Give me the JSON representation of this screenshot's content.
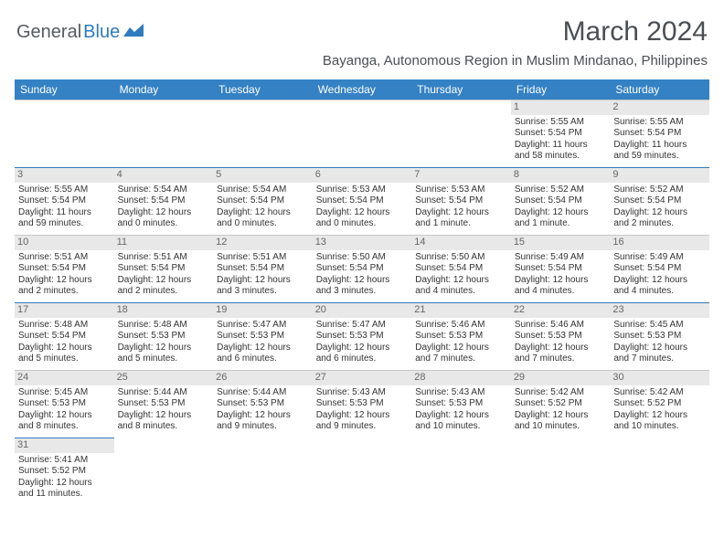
{
  "brand": {
    "part1": "General",
    "part2": "Blue"
  },
  "title": "March 2024",
  "location": "Bayanga, Autonomous Region in Muslim Mindanao, Philippines",
  "colors": {
    "header_bg": "#3481c4",
    "header_text": "#ffffff",
    "daynum_bg": "#e8e8e8",
    "daynum_text": "#666666",
    "body_text": "#333333",
    "row_divider_blue": "#2f7bbf",
    "row_divider_gray": "#c8c8c8",
    "brand_gray": "#555a5f",
    "brand_blue": "#2f7bbf",
    "title_color": "#4a4f54",
    "background": "#ffffff"
  },
  "typography": {
    "month_title_fontsize": 30,
    "location_fontsize": 15,
    "weekday_header_fontsize": 12,
    "daynum_fontsize": 11,
    "cell_fontsize": 10,
    "logo_fontsize": 20
  },
  "weekdays": [
    "Sunday",
    "Monday",
    "Tuesday",
    "Wednesday",
    "Thursday",
    "Friday",
    "Saturday"
  ],
  "weeks": [
    [
      null,
      null,
      null,
      null,
      null,
      {
        "n": "1",
        "sr": "Sunrise: 5:55 AM",
        "ss": "Sunset: 5:54 PM",
        "d1": "Daylight: 11 hours",
        "d2": "and 58 minutes."
      },
      {
        "n": "2",
        "sr": "Sunrise: 5:55 AM",
        "ss": "Sunset: 5:54 PM",
        "d1": "Daylight: 11 hours",
        "d2": "and 59 minutes."
      }
    ],
    [
      {
        "n": "3",
        "sr": "Sunrise: 5:55 AM",
        "ss": "Sunset: 5:54 PM",
        "d1": "Daylight: 11 hours",
        "d2": "and 59 minutes."
      },
      {
        "n": "4",
        "sr": "Sunrise: 5:54 AM",
        "ss": "Sunset: 5:54 PM",
        "d1": "Daylight: 12 hours",
        "d2": "and 0 minutes."
      },
      {
        "n": "5",
        "sr": "Sunrise: 5:54 AM",
        "ss": "Sunset: 5:54 PM",
        "d1": "Daylight: 12 hours",
        "d2": "and 0 minutes."
      },
      {
        "n": "6",
        "sr": "Sunrise: 5:53 AM",
        "ss": "Sunset: 5:54 PM",
        "d1": "Daylight: 12 hours",
        "d2": "and 0 minutes."
      },
      {
        "n": "7",
        "sr": "Sunrise: 5:53 AM",
        "ss": "Sunset: 5:54 PM",
        "d1": "Daylight: 12 hours",
        "d2": "and 1 minute."
      },
      {
        "n": "8",
        "sr": "Sunrise: 5:52 AM",
        "ss": "Sunset: 5:54 PM",
        "d1": "Daylight: 12 hours",
        "d2": "and 1 minute."
      },
      {
        "n": "9",
        "sr": "Sunrise: 5:52 AM",
        "ss": "Sunset: 5:54 PM",
        "d1": "Daylight: 12 hours",
        "d2": "and 2 minutes."
      }
    ],
    [
      {
        "n": "10",
        "sr": "Sunrise: 5:51 AM",
        "ss": "Sunset: 5:54 PM",
        "d1": "Daylight: 12 hours",
        "d2": "and 2 minutes."
      },
      {
        "n": "11",
        "sr": "Sunrise: 5:51 AM",
        "ss": "Sunset: 5:54 PM",
        "d1": "Daylight: 12 hours",
        "d2": "and 2 minutes."
      },
      {
        "n": "12",
        "sr": "Sunrise: 5:51 AM",
        "ss": "Sunset: 5:54 PM",
        "d1": "Daylight: 12 hours",
        "d2": "and 3 minutes."
      },
      {
        "n": "13",
        "sr": "Sunrise: 5:50 AM",
        "ss": "Sunset: 5:54 PM",
        "d1": "Daylight: 12 hours",
        "d2": "and 3 minutes."
      },
      {
        "n": "14",
        "sr": "Sunrise: 5:50 AM",
        "ss": "Sunset: 5:54 PM",
        "d1": "Daylight: 12 hours",
        "d2": "and 4 minutes."
      },
      {
        "n": "15",
        "sr": "Sunrise: 5:49 AM",
        "ss": "Sunset: 5:54 PM",
        "d1": "Daylight: 12 hours",
        "d2": "and 4 minutes."
      },
      {
        "n": "16",
        "sr": "Sunrise: 5:49 AM",
        "ss": "Sunset: 5:54 PM",
        "d1": "Daylight: 12 hours",
        "d2": "and 4 minutes."
      }
    ],
    [
      {
        "n": "17",
        "sr": "Sunrise: 5:48 AM",
        "ss": "Sunset: 5:54 PM",
        "d1": "Daylight: 12 hours",
        "d2": "and 5 minutes."
      },
      {
        "n": "18",
        "sr": "Sunrise: 5:48 AM",
        "ss": "Sunset: 5:53 PM",
        "d1": "Daylight: 12 hours",
        "d2": "and 5 minutes."
      },
      {
        "n": "19",
        "sr": "Sunrise: 5:47 AM",
        "ss": "Sunset: 5:53 PM",
        "d1": "Daylight: 12 hours",
        "d2": "and 6 minutes."
      },
      {
        "n": "20",
        "sr": "Sunrise: 5:47 AM",
        "ss": "Sunset: 5:53 PM",
        "d1": "Daylight: 12 hours",
        "d2": "and 6 minutes."
      },
      {
        "n": "21",
        "sr": "Sunrise: 5:46 AM",
        "ss": "Sunset: 5:53 PM",
        "d1": "Daylight: 12 hours",
        "d2": "and 7 minutes."
      },
      {
        "n": "22",
        "sr": "Sunrise: 5:46 AM",
        "ss": "Sunset: 5:53 PM",
        "d1": "Daylight: 12 hours",
        "d2": "and 7 minutes."
      },
      {
        "n": "23",
        "sr": "Sunrise: 5:45 AM",
        "ss": "Sunset: 5:53 PM",
        "d1": "Daylight: 12 hours",
        "d2": "and 7 minutes."
      }
    ],
    [
      {
        "n": "24",
        "sr": "Sunrise: 5:45 AM",
        "ss": "Sunset: 5:53 PM",
        "d1": "Daylight: 12 hours",
        "d2": "and 8 minutes."
      },
      {
        "n": "25",
        "sr": "Sunrise: 5:44 AM",
        "ss": "Sunset: 5:53 PM",
        "d1": "Daylight: 12 hours",
        "d2": "and 8 minutes."
      },
      {
        "n": "26",
        "sr": "Sunrise: 5:44 AM",
        "ss": "Sunset: 5:53 PM",
        "d1": "Daylight: 12 hours",
        "d2": "and 9 minutes."
      },
      {
        "n": "27",
        "sr": "Sunrise: 5:43 AM",
        "ss": "Sunset: 5:53 PM",
        "d1": "Daylight: 12 hours",
        "d2": "and 9 minutes."
      },
      {
        "n": "28",
        "sr": "Sunrise: 5:43 AM",
        "ss": "Sunset: 5:53 PM",
        "d1": "Daylight: 12 hours",
        "d2": "and 10 minutes."
      },
      {
        "n": "29",
        "sr": "Sunrise: 5:42 AM",
        "ss": "Sunset: 5:52 PM",
        "d1": "Daylight: 12 hours",
        "d2": "and 10 minutes."
      },
      {
        "n": "30",
        "sr": "Sunrise: 5:42 AM",
        "ss": "Sunset: 5:52 PM",
        "d1": "Daylight: 12 hours",
        "d2": "and 10 minutes."
      }
    ],
    [
      {
        "n": "31",
        "sr": "Sunrise: 5:41 AM",
        "ss": "Sunset: 5:52 PM",
        "d1": "Daylight: 12 hours",
        "d2": "and 11 minutes."
      },
      null,
      null,
      null,
      null,
      null,
      null
    ]
  ]
}
